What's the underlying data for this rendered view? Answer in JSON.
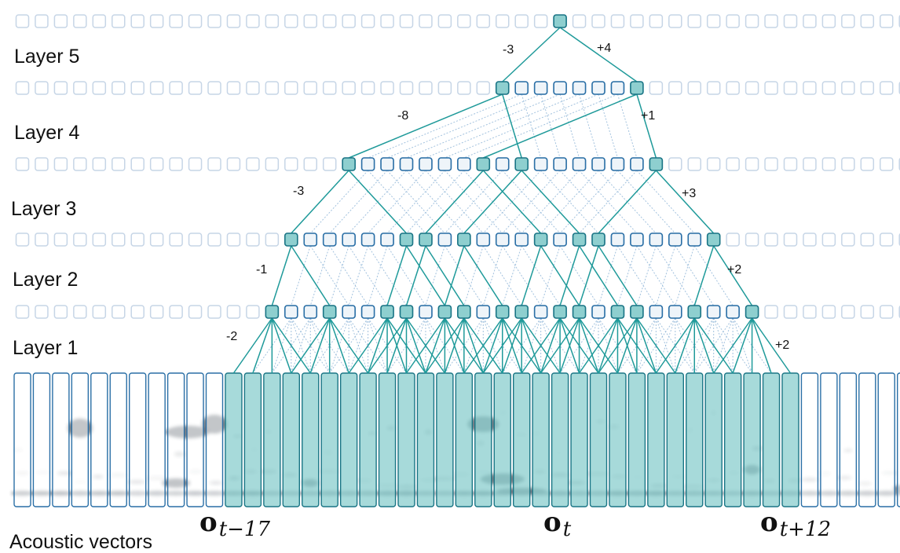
{
  "diagram": {
    "layer_labels": [
      "Layer 1",
      "Layer 2",
      "Layer 3",
      "Layer 4",
      "Layer 5"
    ],
    "input_label": "Acoustic vectors",
    "frame_labels": [
      {
        "base": "o",
        "sub": "t−17",
        "frame": 11
      },
      {
        "base": "o",
        "sub": "t",
        "frame": 28
      },
      {
        "base": "o",
        "sub": "t+12",
        "frame": 40
      }
    ],
    "layer1": {
      "splice": [
        -2,
        -1,
        0,
        1,
        2
      ],
      "offset_labels": [
        "-2",
        "+2"
      ]
    },
    "layer2": {
      "splice": [
        -1,
        2
      ],
      "offset_labels": [
        "-1",
        "+2"
      ]
    },
    "layer3": {
      "splice": [
        -3,
        3
      ],
      "offset_labels": [
        "-3",
        "+3"
      ]
    },
    "layer4": {
      "splice": [
        -8,
        1
      ],
      "offset_labels": [
        "-8",
        "+1"
      ]
    },
    "layer5": {
      "splice": [
        -3,
        4
      ],
      "offset_labels": [
        "-3",
        "+4"
      ]
    },
    "colors": {
      "active_fill": "#8ecfcf",
      "active_stroke": "#1a7585",
      "inactive_stroke": "#2a6fa6",
      "inactive_fill": "#eef4f9",
      "faint_stroke": "#c6d5e6",
      "edge": "#1f9a9a",
      "dotted_edge": "#8cb3d6"
    }
  }
}
